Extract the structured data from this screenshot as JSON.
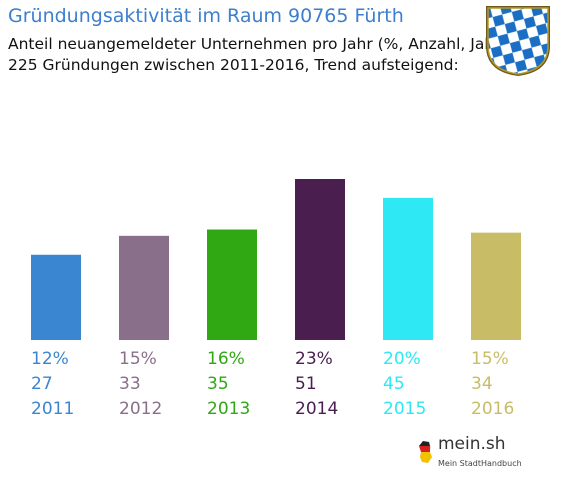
{
  "header": {
    "title": "Gründungsaktivität im Raum 90765 Fürth",
    "subtitle_line1": "Anteil neuangemeldeter Unternehmen pro Jahr (%, Anzahl, Jahr)",
    "subtitle_line2": "225 Gründungen zwischen 2011-2016, Trend aufsteigend:"
  },
  "brand": {
    "name": "mein.sh",
    "tagline": "Mein StadtHandbuch"
  },
  "chart_data": {
    "type": "bar",
    "title": "Gründungsaktivität im Raum 90765 Fürth",
    "categories": [
      "2011",
      "2012",
      "2013",
      "2014",
      "2015",
      "2016"
    ],
    "percent_labels": [
      "12%",
      "15%",
      "16%",
      "23%",
      "20%",
      "15%"
    ],
    "counts": [
      27,
      33,
      35,
      51,
      45,
      34
    ],
    "colors": [
      "#3a86d0",
      "#8a6f8a",
      "#2fa814",
      "#4b1e50",
      "#2ee8f4",
      "#c8bd66"
    ],
    "ylim": [
      0,
      51
    ],
    "grid": false,
    "legend": "none"
  }
}
